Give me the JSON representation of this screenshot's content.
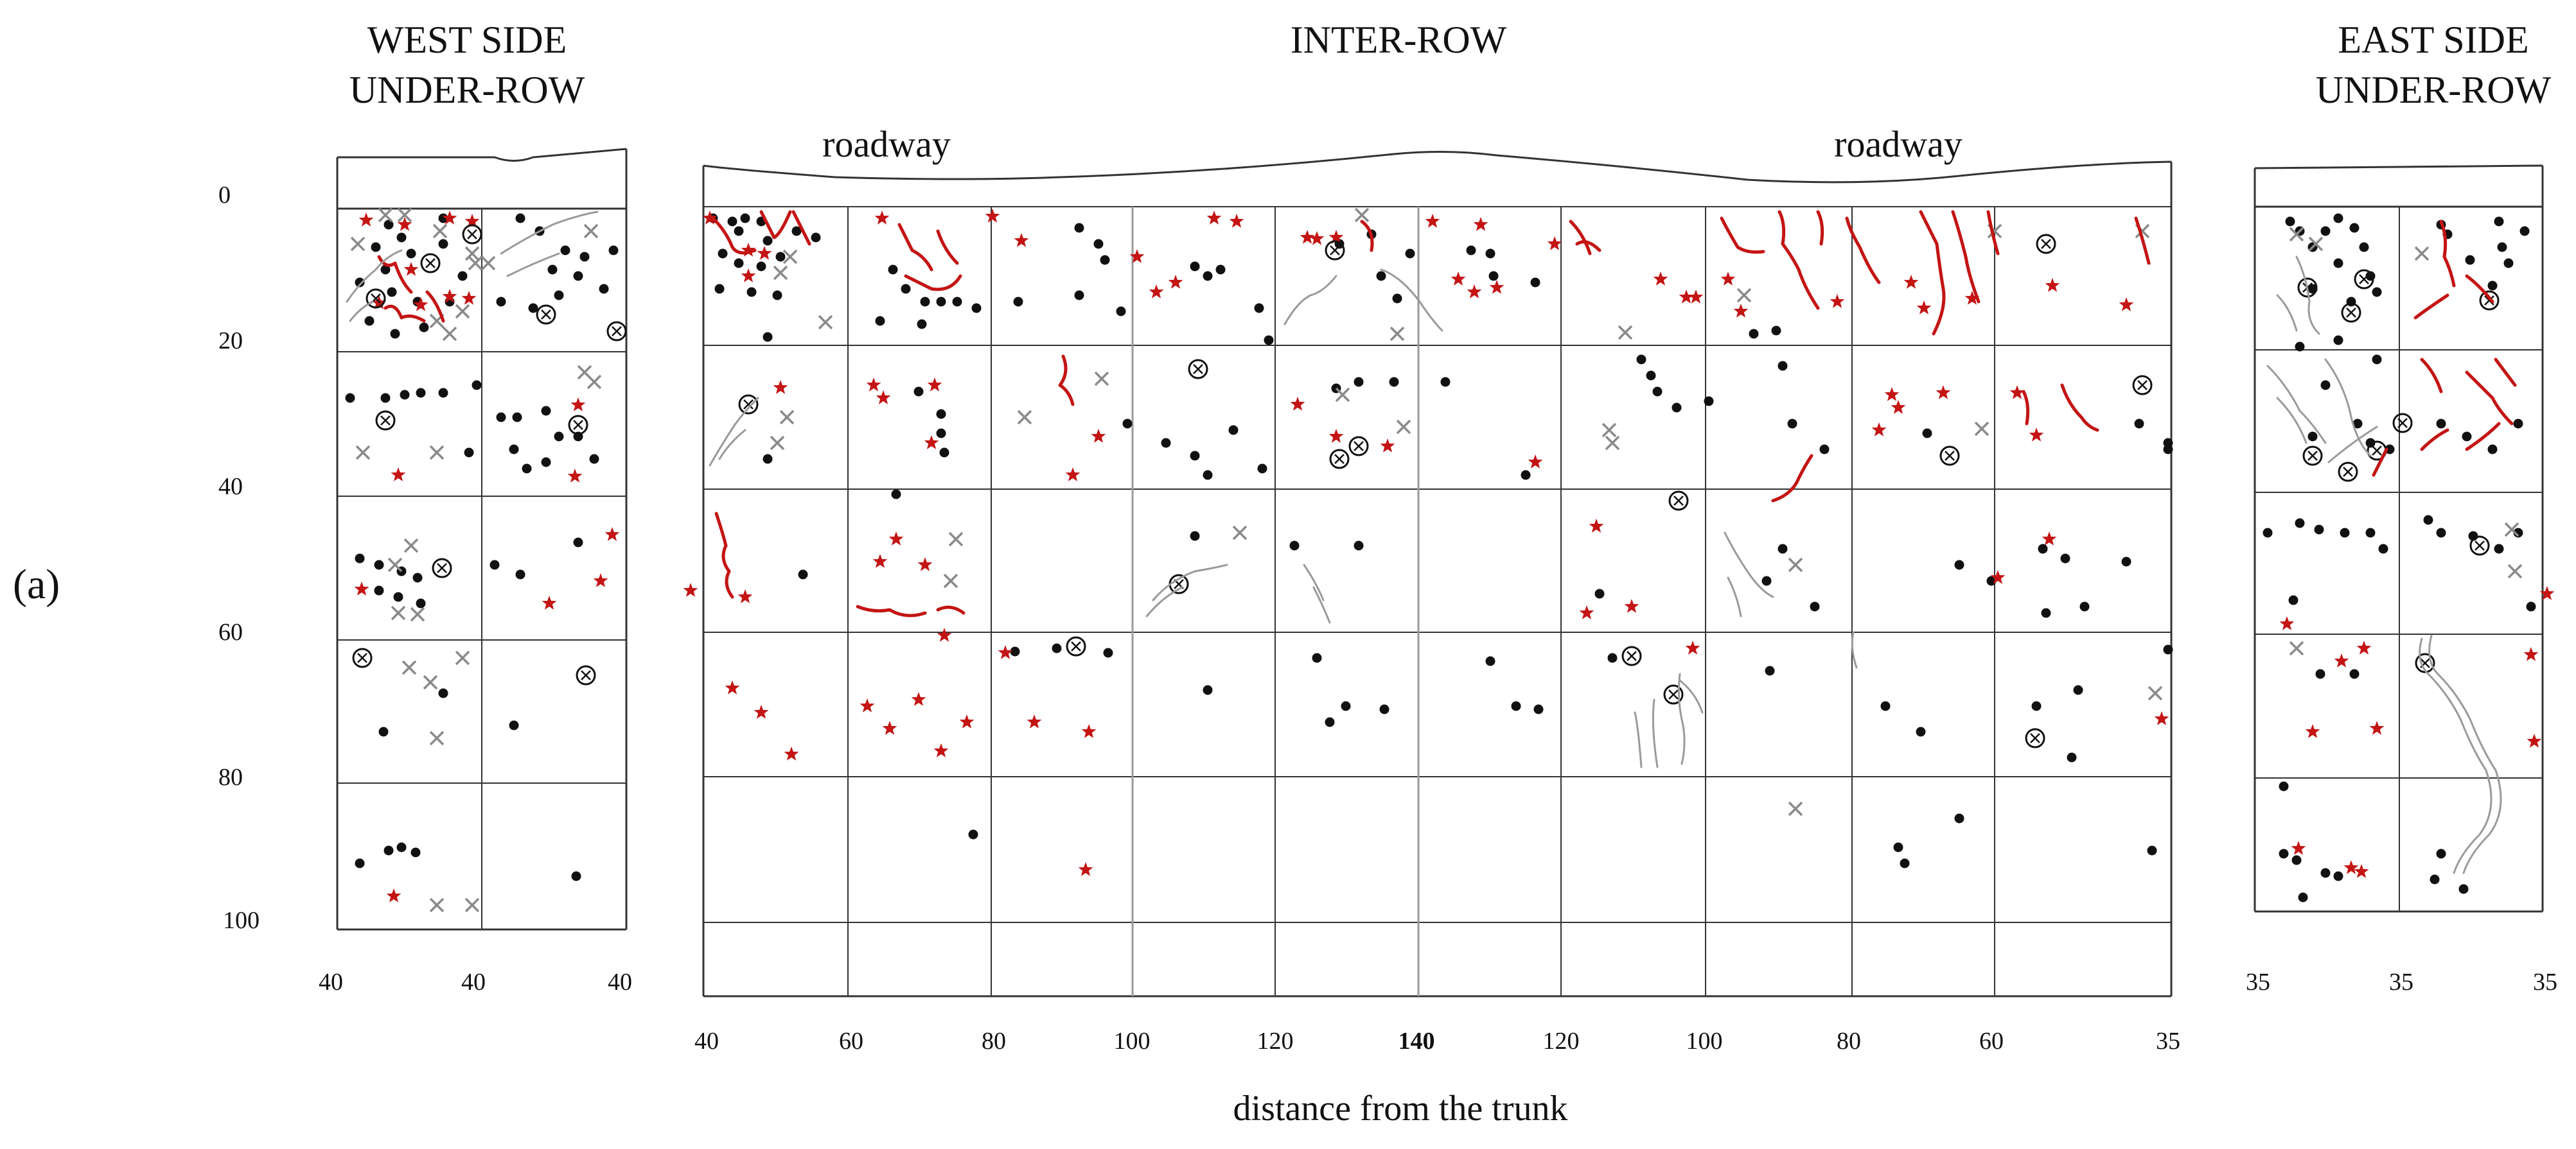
{
  "figure": {
    "panel_label": "(a)",
    "headers": {
      "west_line1": "WEST SIDE",
      "west_line2": "UNDER-ROW",
      "inter": "INTER-ROW",
      "east_line1": "EAST SIDE",
      "east_line2": "UNDER-ROW"
    },
    "roadway_left": "roadway",
    "roadway_right": "roadway",
    "x_axis_label": "distance from the trunk",
    "depth_ticks": [
      "0",
      "20",
      "40",
      "60",
      "80",
      "100"
    ],
    "west_x_ticks": [
      "40",
      "40",
      "40"
    ],
    "inter_x_ticks": [
      "40",
      "60",
      "80",
      "100",
      "120",
      "140",
      "120",
      "100",
      "80",
      "60",
      "35"
    ],
    "inter_x_bold_index": 5,
    "east_x_ticks": [
      "35",
      "35",
      "35"
    ]
  },
  "colors": {
    "ink": "#111111",
    "grid": "#333333",
    "grid_light": "#9a9a9a",
    "red_marker": "#c41414",
    "gray_marker": "#8a8a8a",
    "root_gray": "#9a9a9a"
  },
  "legend_symbols": [
    "black-dot",
    "red-star",
    "gray-cross",
    "circled-cross",
    "red-root",
    "gray-root"
  ]
}
